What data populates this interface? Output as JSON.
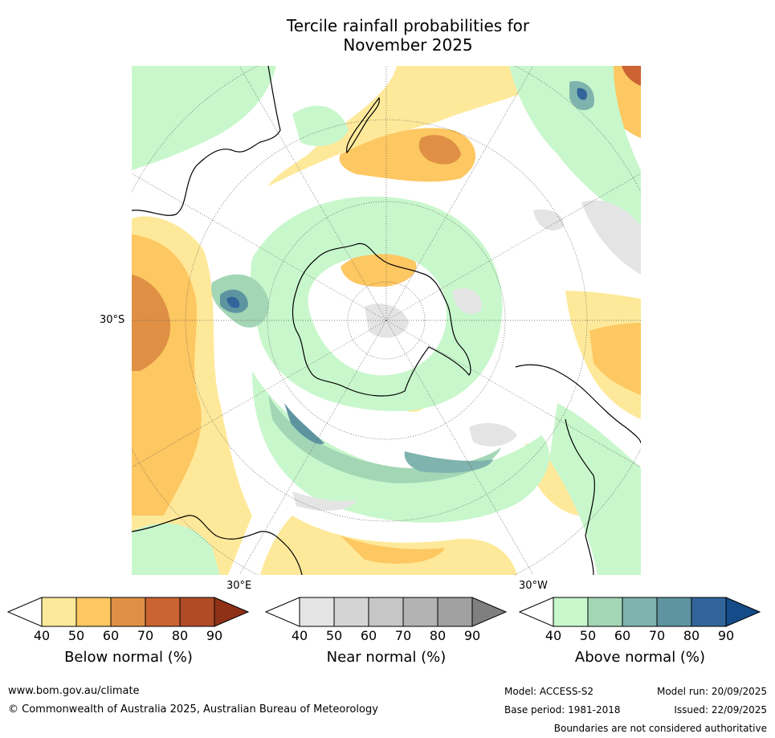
{
  "title_line1": "Tercile rainfall probabilities for",
  "title_line2": "November 2025",
  "map": {
    "lat_label": "30°S",
    "lon_label_east": "30°E",
    "lon_label_west": "30°W",
    "colors": {
      "below_normal": [
        "#fee99a",
        "#fdc761",
        "#df9045",
        "#cb6332",
        "#b04b28",
        "#8e3117"
      ],
      "near_normal": [
        "#e4e4e4",
        "#d4d4d4",
        "#c6c6c6",
        "#b3b3b3",
        "#a1a1a1",
        "#7f7f7f"
      ],
      "above_normal": [
        "#c8f7cc",
        "#a3d6b5",
        "#7fb3ad",
        "#5d94a0",
        "#32659a",
        "#154b88"
      ]
    }
  },
  "colorbars": [
    {
      "title": "Below normal (%)",
      "ticks": [
        "40",
        "50",
        "60",
        "70",
        "80",
        "90"
      ]
    },
    {
      "title": "Near normal (%)",
      "ticks": [
        "40",
        "50",
        "60",
        "70",
        "80",
        "90"
      ]
    },
    {
      "title": "Above normal (%)",
      "ticks": [
        "40",
        "50",
        "60",
        "70",
        "80",
        "90"
      ]
    }
  ],
  "footer": {
    "website": "www.bom.gov.au/climate",
    "copyright": "© Commonwealth of Australia 2025, Australian Bureau of Meteorology",
    "model": "Model: ACCESS-S2",
    "model_run": "Model run: 20/09/2025",
    "base_period": "Base period: 1981-2018",
    "issued": "Issued: 22/09/2025",
    "boundaries_note": "Boundaries are not considered authoritative"
  }
}
